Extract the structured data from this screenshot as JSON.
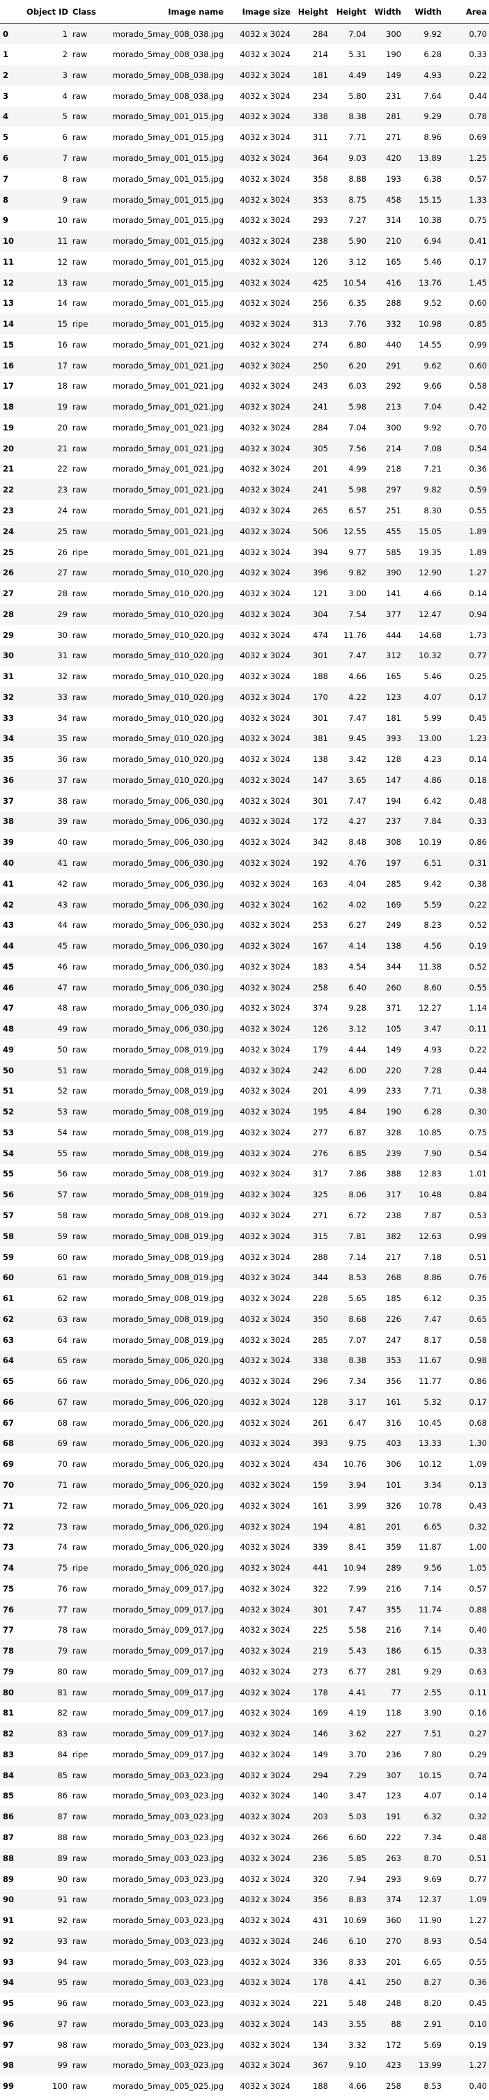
{
  "columns": [
    "",
    "Object ID",
    "Class",
    "Image name",
    "Image size",
    "Height",
    "Height",
    "Width",
    "Width",
    "Area"
  ],
  "rows": [
    [
      "0",
      "1",
      "raw",
      "morado_5may_008_038.jpg",
      "4032 x 3024",
      "284",
      "7.04",
      "300",
      "9.92",
      "0.70"
    ],
    [
      "1",
      "2",
      "raw",
      "morado_5may_008_038.jpg",
      "4032 x 3024",
      "214",
      "5.31",
      "190",
      "6.28",
      "0.33"
    ],
    [
      "2",
      "3",
      "raw",
      "morado_5may_008_038.jpg",
      "4032 x 3024",
      "181",
      "4.49",
      "149",
      "4.93",
      "0.22"
    ],
    [
      "3",
      "4",
      "raw",
      "morado_5may_008_038.jpg",
      "4032 x 3024",
      "234",
      "5.80",
      "231",
      "7.64",
      "0.44"
    ],
    [
      "4",
      "5",
      "raw",
      "morado_5may_001_015.jpg",
      "4032 x 3024",
      "338",
      "8.38",
      "281",
      "9.29",
      "0.78"
    ],
    [
      "5",
      "6",
      "raw",
      "morado_5may_001_015.jpg",
      "4032 x 3024",
      "311",
      "7.71",
      "271",
      "8.96",
      "0.69"
    ],
    [
      "6",
      "7",
      "raw",
      "morado_5may_001_015.jpg",
      "4032 x 3024",
      "364",
      "9.03",
      "420",
      "13.89",
      "1.25"
    ],
    [
      "7",
      "8",
      "raw",
      "morado_5may_001_015.jpg",
      "4032 x 3024",
      "358",
      "8.88",
      "193",
      "6.38",
      "0.57"
    ],
    [
      "8",
      "9",
      "raw",
      "morado_5may_001_015.jpg",
      "4032 x 3024",
      "353",
      "8.75",
      "458",
      "15.15",
      "1.33"
    ],
    [
      "9",
      "10",
      "raw",
      "morado_5may_001_015.jpg",
      "4032 x 3024",
      "293",
      "7.27",
      "314",
      "10.38",
      "0.75"
    ],
    [
      "10",
      "11",
      "raw",
      "morado_5may_001_015.jpg",
      "4032 x 3024",
      "238",
      "5.90",
      "210",
      "6.94",
      "0.41"
    ],
    [
      "11",
      "12",
      "raw",
      "morado_5may_001_015.jpg",
      "4032 x 3024",
      "126",
      "3.12",
      "165",
      "5.46",
      "0.17"
    ],
    [
      "12",
      "13",
      "raw",
      "morado_5may_001_015.jpg",
      "4032 x 3024",
      "425",
      "10.54",
      "416",
      "13.76",
      "1.45"
    ],
    [
      "13",
      "14",
      "raw",
      "morado_5may_001_015.jpg",
      "4032 x 3024",
      "256",
      "6.35",
      "288",
      "9.52",
      "0.60"
    ],
    [
      "14",
      "15",
      "ripe",
      "morado_5may_001_015.jpg",
      "4032 x 3024",
      "313",
      "7.76",
      "332",
      "10.98",
      "0.85"
    ],
    [
      "15",
      "16",
      "raw",
      "morado_5may_001_021.jpg",
      "4032 x 3024",
      "274",
      "6.80",
      "440",
      "14.55",
      "0.99"
    ],
    [
      "16",
      "17",
      "raw",
      "morado_5may_001_021.jpg",
      "4032 x 3024",
      "250",
      "6.20",
      "291",
      "9.62",
      "0.60"
    ],
    [
      "17",
      "18",
      "raw",
      "morado_5may_001_021.jpg",
      "4032 x 3024",
      "243",
      "6.03",
      "292",
      "9.66",
      "0.58"
    ],
    [
      "18",
      "19",
      "raw",
      "morado_5may_001_021.jpg",
      "4032 x 3024",
      "241",
      "5.98",
      "213",
      "7.04",
      "0.42"
    ],
    [
      "19",
      "20",
      "raw",
      "morado_5may_001_021.jpg",
      "4032 x 3024",
      "284",
      "7.04",
      "300",
      "9.92",
      "0.70"
    ],
    [
      "20",
      "21",
      "raw",
      "morado_5may_001_021.jpg",
      "4032 x 3024",
      "305",
      "7.56",
      "214",
      "7.08",
      "0.54"
    ],
    [
      "21",
      "22",
      "raw",
      "morado_5may_001_021.jpg",
      "4032 x 3024",
      "201",
      "4.99",
      "218",
      "7.21",
      "0.36"
    ],
    [
      "22",
      "23",
      "raw",
      "morado_5may_001_021.jpg",
      "4032 x 3024",
      "241",
      "5.98",
      "297",
      "9.82",
      "0.59"
    ],
    [
      "23",
      "24",
      "raw",
      "morado_5may_001_021.jpg",
      "4032 x 3024",
      "265",
      "6.57",
      "251",
      "8.30",
      "0.55"
    ],
    [
      "24",
      "25",
      "raw",
      "morado_5may_001_021.jpg",
      "4032 x 3024",
      "506",
      "12.55",
      "455",
      "15.05",
      "1.89"
    ],
    [
      "25",
      "26",
      "ripe",
      "morado_5may_001_021.jpg",
      "4032 x 3024",
      "394",
      "9.77",
      "585",
      "19.35",
      "1.89"
    ],
    [
      "26",
      "27",
      "raw",
      "morado_5may_010_020.jpg",
      "4032 x 3024",
      "396",
      "9.82",
      "390",
      "12.90",
      "1.27"
    ],
    [
      "27",
      "28",
      "raw",
      "morado_5may_010_020.jpg",
      "4032 x 3024",
      "121",
      "3.00",
      "141",
      "4.66",
      "0.14"
    ],
    [
      "28",
      "29",
      "raw",
      "morado_5may_010_020.jpg",
      "4032 x 3024",
      "304",
      "7.54",
      "377",
      "12.47",
      "0.94"
    ],
    [
      "29",
      "30",
      "raw",
      "morado_5may_010_020.jpg",
      "4032 x 3024",
      "474",
      "11.76",
      "444",
      "14.68",
      "1.73"
    ],
    [
      "30",
      "31",
      "raw",
      "morado_5may_010_020.jpg",
      "4032 x 3024",
      "301",
      "7.47",
      "312",
      "10.32",
      "0.77"
    ],
    [
      "31",
      "32",
      "raw",
      "morado_5may_010_020.jpg",
      "4032 x 3024",
      "188",
      "4.66",
      "165",
      "5.46",
      "0.25"
    ],
    [
      "32",
      "33",
      "raw",
      "morado_5may_010_020.jpg",
      "4032 x 3024",
      "170",
      "4.22",
      "123",
      "4.07",
      "0.17"
    ],
    [
      "33",
      "34",
      "raw",
      "morado_5may_010_020.jpg",
      "4032 x 3024",
      "301",
      "7.47",
      "181",
      "5.99",
      "0.45"
    ],
    [
      "34",
      "35",
      "raw",
      "morado_5may_010_020.jpg",
      "4032 x 3024",
      "381",
      "9.45",
      "393",
      "13.00",
      "1.23"
    ],
    [
      "35",
      "36",
      "raw",
      "morado_5may_010_020.jpg",
      "4032 x 3024",
      "138",
      "3.42",
      "128",
      "4.23",
      "0.14"
    ],
    [
      "36",
      "37",
      "raw",
      "morado_5may_010_020.jpg",
      "4032 x 3024",
      "147",
      "3.65",
      "147",
      "4.86",
      "0.18"
    ],
    [
      "37",
      "38",
      "raw",
      "morado_5may_006_030.jpg",
      "4032 x 3024",
      "301",
      "7.47",
      "194",
      "6.42",
      "0.48"
    ],
    [
      "38",
      "39",
      "raw",
      "morado_5may_006_030.jpg",
      "4032 x 3024",
      "172",
      "4.27",
      "237",
      "7.84",
      "0.33"
    ],
    [
      "39",
      "40",
      "raw",
      "morado_5may_006_030.jpg",
      "4032 x 3024",
      "342",
      "8.48",
      "308",
      "10.19",
      "0.86"
    ],
    [
      "40",
      "41",
      "raw",
      "morado_5may_006_030.jpg",
      "4032 x 3024",
      "192",
      "4.76",
      "197",
      "6.51",
      "0.31"
    ],
    [
      "41",
      "42",
      "raw",
      "morado_5may_006_030.jpg",
      "4032 x 3024",
      "163",
      "4.04",
      "285",
      "9.42",
      "0.38"
    ],
    [
      "42",
      "43",
      "raw",
      "morado_5may_006_030.jpg",
      "4032 x 3024",
      "162",
      "4.02",
      "169",
      "5.59",
      "0.22"
    ],
    [
      "43",
      "44",
      "raw",
      "morado_5may_006_030.jpg",
      "4032 x 3024",
      "253",
      "6.27",
      "249",
      "8.23",
      "0.52"
    ],
    [
      "44",
      "45",
      "raw",
      "morado_5may_006_030.jpg",
      "4032 x 3024",
      "167",
      "4.14",
      "138",
      "4.56",
      "0.19"
    ],
    [
      "45",
      "46",
      "raw",
      "morado_5may_006_030.jpg",
      "4032 x 3024",
      "183",
      "4.54",
      "344",
      "11.38",
      "0.52"
    ],
    [
      "46",
      "47",
      "raw",
      "morado_5may_006_030.jpg",
      "4032 x 3024",
      "258",
      "6.40",
      "260",
      "8.60",
      "0.55"
    ],
    [
      "47",
      "48",
      "raw",
      "morado_5may_006_030.jpg",
      "4032 x 3024",
      "374",
      "9.28",
      "371",
      "12.27",
      "1.14"
    ],
    [
      "48",
      "49",
      "raw",
      "morado_5may_006_030.jpg",
      "4032 x 3024",
      "126",
      "3.12",
      "105",
      "3.47",
      "0.11"
    ],
    [
      "49",
      "50",
      "raw",
      "morado_5may_008_019.jpg",
      "4032 x 3024",
      "179",
      "4.44",
      "149",
      "4.93",
      "0.22"
    ],
    [
      "50",
      "51",
      "raw",
      "morado_5may_008_019.jpg",
      "4032 x 3024",
      "242",
      "6.00",
      "220",
      "7.28",
      "0.44"
    ],
    [
      "51",
      "52",
      "raw",
      "morado_5may_008_019.jpg",
      "4032 x 3024",
      "201",
      "4.99",
      "233",
      "7.71",
      "0.38"
    ],
    [
      "52",
      "53",
      "raw",
      "morado_5may_008_019.jpg",
      "4032 x 3024",
      "195",
      "4.84",
      "190",
      "6.28",
      "0.30"
    ],
    [
      "53",
      "54",
      "raw",
      "morado_5may_008_019.jpg",
      "4032 x 3024",
      "277",
      "6.87",
      "328",
      "10.85",
      "0.75"
    ],
    [
      "54",
      "55",
      "raw",
      "morado_5may_008_019.jpg",
      "4032 x 3024",
      "276",
      "6.85",
      "239",
      "7.90",
      "0.54"
    ],
    [
      "55",
      "56",
      "raw",
      "morado_5may_008_019.jpg",
      "4032 x 3024",
      "317",
      "7.86",
      "388",
      "12.83",
      "1.01"
    ],
    [
      "56",
      "57",
      "raw",
      "morado_5may_008_019.jpg",
      "4032 x 3024",
      "325",
      "8.06",
      "317",
      "10.48",
      "0.84"
    ],
    [
      "57",
      "58",
      "raw",
      "morado_5may_008_019.jpg",
      "4032 x 3024",
      "271",
      "6.72",
      "238",
      "7.87",
      "0.53"
    ],
    [
      "58",
      "59",
      "raw",
      "morado_5may_008_019.jpg",
      "4032 x 3024",
      "315",
      "7.81",
      "382",
      "12.63",
      "0.99"
    ],
    [
      "59",
      "60",
      "raw",
      "morado_5may_008_019.jpg",
      "4032 x 3024",
      "288",
      "7.14",
      "217",
      "7.18",
      "0.51"
    ],
    [
      "60",
      "61",
      "raw",
      "morado_5may_008_019.jpg",
      "4032 x 3024",
      "344",
      "8.53",
      "268",
      "8.86",
      "0.76"
    ],
    [
      "61",
      "62",
      "raw",
      "morado_5may_008_019.jpg",
      "4032 x 3024",
      "228",
      "5.65",
      "185",
      "6.12",
      "0.35"
    ],
    [
      "62",
      "63",
      "raw",
      "morado_5may_008_019.jpg",
      "4032 x 3024",
      "350",
      "8.68",
      "226",
      "7.47",
      "0.65"
    ],
    [
      "63",
      "64",
      "raw",
      "morado_5may_008_019.jpg",
      "4032 x 3024",
      "285",
      "7.07",
      "247",
      "8.17",
      "0.58"
    ],
    [
      "64",
      "65",
      "raw",
      "morado_5may_006_020.jpg",
      "4032 x 3024",
      "338",
      "8.38",
      "353",
      "11.67",
      "0.98"
    ],
    [
      "65",
      "66",
      "raw",
      "morado_5may_006_020.jpg",
      "4032 x 3024",
      "296",
      "7.34",
      "356",
      "11.77",
      "0.86"
    ],
    [
      "66",
      "67",
      "raw",
      "morado_5may_006_020.jpg",
      "4032 x 3024",
      "128",
      "3.17",
      "161",
      "5.32",
      "0.17"
    ],
    [
      "67",
      "68",
      "raw",
      "morado_5may_006_020.jpg",
      "4032 x 3024",
      "261",
      "6.47",
      "316",
      "10.45",
      "0.68"
    ],
    [
      "68",
      "69",
      "raw",
      "morado_5may_006_020.jpg",
      "4032 x 3024",
      "393",
      "9.75",
      "403",
      "13.33",
      "1.30"
    ],
    [
      "69",
      "70",
      "raw",
      "morado_5may_006_020.jpg",
      "4032 x 3024",
      "434",
      "10.76",
      "306",
      "10.12",
      "1.09"
    ],
    [
      "70",
      "71",
      "raw",
      "morado_5may_006_020.jpg",
      "4032 x 3024",
      "159",
      "3.94",
      "101",
      "3.34",
      "0.13"
    ],
    [
      "71",
      "72",
      "raw",
      "morado_5may_006_020.jpg",
      "4032 x 3024",
      "161",
      "3.99",
      "326",
      "10.78",
      "0.43"
    ],
    [
      "72",
      "73",
      "raw",
      "morado_5may_006_020.jpg",
      "4032 x 3024",
      "194",
      "4.81",
      "201",
      "6.65",
      "0.32"
    ],
    [
      "73",
      "74",
      "raw",
      "morado_5may_006_020.jpg",
      "4032 x 3024",
      "339",
      "8.41",
      "359",
      "11.87",
      "1.00"
    ],
    [
      "74",
      "75",
      "ripe",
      "morado_5may_006_020.jpg",
      "4032 x 3024",
      "441",
      "10.94",
      "289",
      "9.56",
      "1.05"
    ],
    [
      "75",
      "76",
      "raw",
      "morado_5may_009_017.jpg",
      "4032 x 3024",
      "322",
      "7.99",
      "216",
      "7.14",
      "0.57"
    ],
    [
      "76",
      "77",
      "raw",
      "morado_5may_009_017.jpg",
      "4032 x 3024",
      "301",
      "7.47",
      "355",
      "11.74",
      "0.88"
    ],
    [
      "77",
      "78",
      "raw",
      "morado_5may_009_017.jpg",
      "4032 x 3024",
      "225",
      "5.58",
      "216",
      "7.14",
      "0.40"
    ],
    [
      "78",
      "79",
      "raw",
      "morado_5may_009_017.jpg",
      "4032 x 3024",
      "219",
      "5.43",
      "186",
      "6.15",
      "0.33"
    ],
    [
      "79",
      "80",
      "raw",
      "morado_5may_009_017.jpg",
      "4032 x 3024",
      "273",
      "6.77",
      "281",
      "9.29",
      "0.63"
    ],
    [
      "80",
      "81",
      "raw",
      "morado_5may_009_017.jpg",
      "4032 x 3024",
      "178",
      "4.41",
      "77",
      "2.55",
      "0.11"
    ],
    [
      "81",
      "82",
      "raw",
      "morado_5may_009_017.jpg",
      "4032 x 3024",
      "169",
      "4.19",
      "118",
      "3.90",
      "0.16"
    ],
    [
      "82",
      "83",
      "raw",
      "morado_5may_009_017.jpg",
      "4032 x 3024",
      "146",
      "3.62",
      "227",
      "7.51",
      "0.27"
    ],
    [
      "83",
      "84",
      "ripe",
      "morado_5may_009_017.jpg",
      "4032 x 3024",
      "149",
      "3.70",
      "236",
      "7.80",
      "0.29"
    ],
    [
      "84",
      "85",
      "raw",
      "morado_5may_003_023.jpg",
      "4032 x 3024",
      "294",
      "7.29",
      "307",
      "10.15",
      "0.74"
    ],
    [
      "85",
      "86",
      "raw",
      "morado_5may_003_023.jpg",
      "4032 x 3024",
      "140",
      "3.47",
      "123",
      "4.07",
      "0.14"
    ],
    [
      "86",
      "87",
      "raw",
      "morado_5may_003_023.jpg",
      "4032 x 3024",
      "203",
      "5.03",
      "191",
      "6.32",
      "0.32"
    ],
    [
      "87",
      "88",
      "raw",
      "morado_5may_003_023.jpg",
      "4032 x 3024",
      "266",
      "6.60",
      "222",
      "7.34",
      "0.48"
    ],
    [
      "88",
      "89",
      "raw",
      "morado_5may_003_023.jpg",
      "4032 x 3024",
      "236",
      "5.85",
      "263",
      "8.70",
      "0.51"
    ],
    [
      "89",
      "90",
      "raw",
      "morado_5may_003_023.jpg",
      "4032 x 3024",
      "320",
      "7.94",
      "293",
      "9.69",
      "0.77"
    ],
    [
      "90",
      "91",
      "raw",
      "morado_5may_003_023.jpg",
      "4032 x 3024",
      "356",
      "8.83",
      "374",
      "12.37",
      "1.09"
    ],
    [
      "91",
      "92",
      "raw",
      "morado_5may_003_023.jpg",
      "4032 x 3024",
      "431",
      "10.69",
      "360",
      "11.90",
      "1.27"
    ],
    [
      "92",
      "93",
      "raw",
      "morado_5may_003_023.jpg",
      "4032 x 3024",
      "246",
      "6.10",
      "270",
      "8.93",
      "0.54"
    ],
    [
      "93",
      "94",
      "raw",
      "morado_5may_003_023.jpg",
      "4032 x 3024",
      "336",
      "8.33",
      "201",
      "6.65",
      "0.55"
    ],
    [
      "94",
      "95",
      "raw",
      "morado_5may_003_023.jpg",
      "4032 x 3024",
      "178",
      "4.41",
      "250",
      "8.27",
      "0.36"
    ],
    [
      "95",
      "96",
      "raw",
      "morado_5may_003_023.jpg",
      "4032 x 3024",
      "221",
      "5.48",
      "248",
      "8.20",
      "0.45"
    ],
    [
      "96",
      "97",
      "raw",
      "morado_5may_003_023.jpg",
      "4032 x 3024",
      "143",
      "3.55",
      "88",
      "2.91",
      "0.10"
    ],
    [
      "97",
      "98",
      "raw",
      "morado_5may_003_023.jpg",
      "4032 x 3024",
      "134",
      "3.32",
      "172",
      "5.69",
      "0.19"
    ],
    [
      "98",
      "99",
      "raw",
      "morado_5may_003_023.jpg",
      "4032 x 3024",
      "367",
      "9.10",
      "423",
      "13.99",
      "1.27"
    ],
    [
      "99",
      "100",
      "raw",
      "morado_5may_005_025.jpg",
      "4032 x 3024",
      "188",
      "4.66",
      "258",
      "8.53",
      "0.40"
    ]
  ]
}
